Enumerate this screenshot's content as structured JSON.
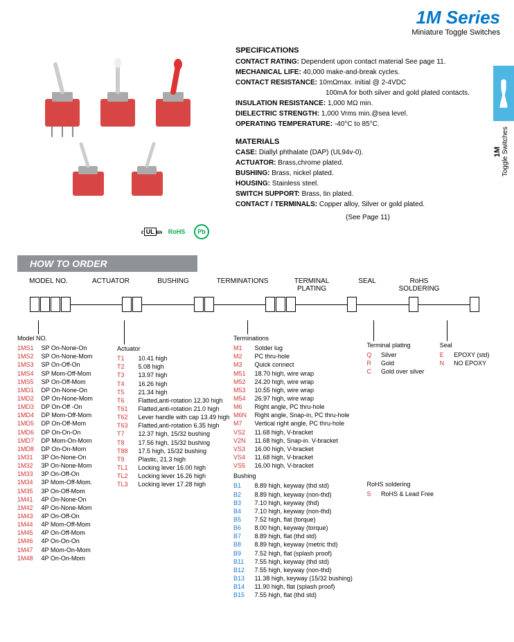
{
  "header": {
    "title": "1M Series",
    "subtitle": "Miniature Toggle Switches"
  },
  "sideTab": {
    "line1": "1M",
    "line2": "Toggle Switches"
  },
  "specs": {
    "heading": "SPECIFICATIONS",
    "rows": [
      {
        "label": "CONTACT RATING:",
        "value": "Dependent upon contact material See page 11."
      },
      {
        "label": "MECHANICAL LIFE:",
        "value": "40,000 make-and-break cycles."
      },
      {
        "label": "CONTACT RESISTANCE:",
        "value": "10mΩmax. initial @ 2-4VDC"
      },
      {
        "label": "",
        "value": "100mA for both silver and gold plated contacts."
      },
      {
        "label": "INSULATION RESISTANCE:",
        "value": "1,000 MΩ min."
      },
      {
        "label": "DIELECTRIC STRENGTH:",
        "value": "1,000 Vrms min.@sea level."
      },
      {
        "label": "OPERATING TEMPERATURE:",
        "value": "-40°C to 85°C."
      }
    ]
  },
  "materials": {
    "heading": "MATERIALS",
    "rows": [
      {
        "label": "CASE:",
        "value": "Diallyl phthalate (DAP) (UL94v-0)."
      },
      {
        "label": "ACTUATOR:",
        "value": "Brass,chrome plated."
      },
      {
        "label": "BUSHING:",
        "value": "Brass, nickel plated."
      },
      {
        "label": "HOUSING:",
        "value": "Stainless steel."
      },
      {
        "label": "SWITCH SUPPORT:",
        "value": "Brass, tin plated."
      },
      {
        "label": "CONTACT / TERMINALS:",
        "value": "Copper alloy, Silver or gold plated."
      }
    ],
    "seePage": "(See Page 11)"
  },
  "certs": [
    "UL us",
    "RoHS",
    "Pb"
  ],
  "howToOrder": "HOW TO ORDER",
  "orderLabels": [
    "MODEL NO.",
    "ACTUATOR",
    "BUSHING",
    "TERMINATIONS",
    "TERMINAL PLATING",
    "SEAL",
    "RoHS SOLDERING"
  ],
  "modelNo": {
    "header": "Model NO.",
    "items": [
      {
        "code": "1MS1",
        "desc": "SP On-None-On"
      },
      {
        "code": "1MS2",
        "desc": "SP On-None-Mom"
      },
      {
        "code": "1MS3",
        "desc": "SP On-Off-On"
      },
      {
        "code": "1MS4",
        "desc": "SP Mom-Off-Mom"
      },
      {
        "code": "1MS5",
        "desc": "SP On-Off-Mom"
      },
      {
        "code": "1MD1",
        "desc": "DP On-None-On"
      },
      {
        "code": "1MD2",
        "desc": "DP On-None-Mom"
      },
      {
        "code": "1MD3",
        "desc": "DP On-Off -On"
      },
      {
        "code": "1MD4",
        "desc": "DP Mom-Off-Mom"
      },
      {
        "code": "1MD5",
        "desc": "DP On-Off-Mom"
      },
      {
        "code": "1MD6",
        "desc": "DP On-On-On"
      },
      {
        "code": "1MD7",
        "desc": "DP Mom-On-Mom"
      },
      {
        "code": "1MD8",
        "desc": "DP On-On-Mom"
      },
      {
        "code": "1M31",
        "desc": "3P On-None-On"
      },
      {
        "code": "1M32",
        "desc": "3P On-None-Mom"
      },
      {
        "code": "1M33",
        "desc": "3P On-Off-On"
      },
      {
        "code": "1M34",
        "desc": "3P Mom-Off-Mom."
      },
      {
        "code": "1M35",
        "desc": "3P On-Off-Mom"
      },
      {
        "code": "1M41",
        "desc": "4P On-None-On"
      },
      {
        "code": "1M42",
        "desc": "4P On-None-Mom"
      },
      {
        "code": "1M43",
        "desc": "4P On-Off-On"
      },
      {
        "code": "1M44",
        "desc": "4P Mom-Off-Mom"
      },
      {
        "code": "1M45",
        "desc": "4P On-Off-Mom"
      },
      {
        "code": "1M46",
        "desc": "4P On-On-On"
      },
      {
        "code": "1M47",
        "desc": "4P Mom-On-Mom"
      },
      {
        "code": "1M48",
        "desc": "4P On-On-Mom"
      }
    ]
  },
  "actuator": {
    "header": "Actuator",
    "items": [
      {
        "code": "T1",
        "desc": "10.41 high"
      },
      {
        "code": "T2",
        "desc": "5.08 high"
      },
      {
        "code": "T3",
        "desc": "13.97 high"
      },
      {
        "code": "T4",
        "desc": "16.26 high"
      },
      {
        "code": "T5",
        "desc": "21.34 high"
      },
      {
        "code": "T6",
        "desc": "Flatted,anti-rotation 12.30 high"
      },
      {
        "code": "T61",
        "desc": "Flatted,anti-rotation 21.0 high"
      },
      {
        "code": "T62",
        "desc": "Lever handle with cap 13.49 high"
      },
      {
        "code": "T63",
        "desc": "Flatted,anti-rotation 6.35 high"
      },
      {
        "code": "T7",
        "desc": "12.37 high, 15/32 bushing"
      },
      {
        "code": "T8",
        "desc": "17.56 high, 15/32 bushing"
      },
      {
        "code": "T88",
        "desc": "17.5 high, 15/32 bushing"
      },
      {
        "code": "T9",
        "desc": "Plastic, 21.3 high"
      },
      {
        "code": "TL1",
        "desc": "Locking lever 16.00 high"
      },
      {
        "code": "TL2",
        "desc": "Locking lever 16.26 high"
      },
      {
        "code": "TL3",
        "desc": "Locking lever 17.28 high"
      }
    ]
  },
  "terminations": {
    "header": "Terminations",
    "items": [
      {
        "code": "M1",
        "desc": "Solder lug"
      },
      {
        "code": "M2",
        "desc": "PC thru-hole"
      },
      {
        "code": "M3",
        "desc": "Quick connect"
      },
      {
        "code": "M51",
        "desc": "18.70 high, wire wrap"
      },
      {
        "code": "M52",
        "desc": "24.20 high, wire wrap"
      },
      {
        "code": "M53",
        "desc": "10.55 high, wire wrap"
      },
      {
        "code": "M54",
        "desc": "26.97 high, wire wrap"
      },
      {
        "code": "M6",
        "desc": "Right angle, PC thru-hole"
      },
      {
        "code": "M6N",
        "desc": "Right angle, Snap-in, PC thru-hole"
      },
      {
        "code": "M7",
        "desc": "Vertical right angle, PC thru-hole"
      },
      {
        "code": "VS2",
        "desc": "11.68 high, V-bracket"
      },
      {
        "code": "V2N",
        "desc": "11.68 high, Snap-in. V-bracket"
      },
      {
        "code": "VS3",
        "desc": "16.00 high, V-bracket"
      },
      {
        "code": "VS4",
        "desc": "11.68 high, V-bracket"
      },
      {
        "code": "VS5",
        "desc": "16.00 high, V-bracket"
      }
    ]
  },
  "bushing": {
    "header": "Bushing",
    "items": [
      {
        "code": "B1",
        "desc": "8.89 high, keyway (thd std)"
      },
      {
        "code": "B2",
        "desc": "8.89 high, keyway (non-thd)"
      },
      {
        "code": "B3",
        "desc": "7.10 high, keyway (thd)"
      },
      {
        "code": "B4",
        "desc": "7.10 high, keyway (non-thd)"
      },
      {
        "code": "B5",
        "desc": "7.52 high, flat (torque)"
      },
      {
        "code": "B6",
        "desc": "8.00 high, keyway (torque)"
      },
      {
        "code": "B7",
        "desc": "8.89 high, flat (thd std)"
      },
      {
        "code": "B8",
        "desc": "8.89 high, keyway (metric thd)"
      },
      {
        "code": "B9",
        "desc": "7.52 high, flat (splash proof)"
      },
      {
        "code": "B11",
        "desc": "7.55 high, keyway (thd std)"
      },
      {
        "code": "B12",
        "desc": "7.55 high, keyway (non-thd)"
      },
      {
        "code": "B13",
        "desc": "11.38 high, keyway (15/32 bushing)"
      },
      {
        "code": "B14",
        "desc": "11.90 high, flat (splash proof)"
      },
      {
        "code": "B15",
        "desc": "7.55 high, flat (thd std)"
      }
    ]
  },
  "terminalPlating": {
    "header": "Terminal plating",
    "items": [
      {
        "code": "Q",
        "desc": "Silver"
      },
      {
        "code": "R",
        "desc": "Gold"
      },
      {
        "code": "C",
        "desc": "Gold over silver"
      }
    ]
  },
  "seal": {
    "header": "Seal",
    "items": [
      {
        "code": "E",
        "desc": "EPOXY (std)"
      },
      {
        "code": "N",
        "desc": "NO EPOXY"
      }
    ]
  },
  "rohs": {
    "header": "RoHS soldering",
    "items": [
      {
        "code": "S",
        "desc": "RoHS & Lead Free"
      }
    ]
  }
}
